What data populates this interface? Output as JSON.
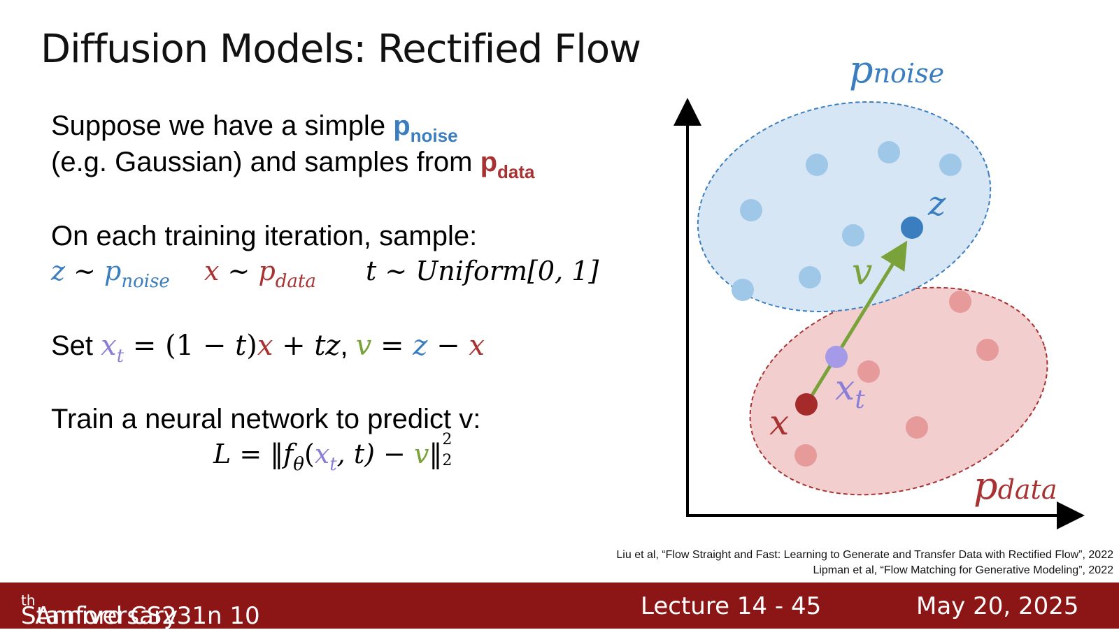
{
  "slide": {
    "title": "Diffusion Models: Rectified Flow",
    "intro_line1": "Suppose we have a simple ",
    "pnoise_p": "p",
    "pnoise_sub": "noise",
    "intro_line2": "(e.g. Gaussian) and samples from ",
    "pdata_p": "p",
    "pdata_sub": "data",
    "sample_heading": "On each training iteration, sample:",
    "sample_z": "z",
    "sample_tilde1": " ~ ",
    "sample_pnoise": "p",
    "sample_pnoise_sub": "noise",
    "sample_x": "x",
    "sample_tilde2": " ~ ",
    "sample_pdata": "p",
    "sample_pdata_sub": "data",
    "sample_t": "t ~ Uniform[0, 1]",
    "set_word": "Set ",
    "set_xt": "x",
    "set_xt_sub": "t",
    "set_eq1": " = (1 − ",
    "set_t": "t",
    "set_close": ")",
    "set_x": "x",
    "set_plus": " + ",
    "set_tz": "tz",
    "set_comma": ", ",
    "set_v": "v",
    "set_eq2": " = ",
    "set_z": "z",
    "set_minus": " − ",
    "set_x2": "x",
    "train_heading": "Train a neural network to predict v:",
    "loss_L": "L = ‖f",
    "loss_theta": "θ",
    "loss_open": "(",
    "loss_xt": "x",
    "loss_xt_sub": "t",
    "loss_rest": ", t) − ",
    "loss_v": "v",
    "loss_norm": "‖",
    "loss_sup": "2",
    "loss_sub": "2"
  },
  "diagram": {
    "label_pnoise": "p",
    "label_pnoise_sub": "noise",
    "label_pdata": "p",
    "label_pdata_sub": "data",
    "label_z": "z",
    "label_v": "v",
    "label_xt": "x",
    "label_xt_sub": "t",
    "label_x": "x",
    "colors": {
      "noise_fill": "#d6e6f4",
      "noise_border": "#3a7ebf",
      "noise_dot": "#9fc7e8",
      "z_dot": "#3a7ebf",
      "data_fill": "#f2cece",
      "data_border": "#a83232",
      "data_dot": "#e69a9a",
      "x_dot": "#a52a2a",
      "xt_dot": "#a49ae8",
      "arrow": "#7aa23a"
    }
  },
  "citations": {
    "line1": "Liu et al, “Flow Straight and Fast: Learning to Generate and Transfer Data with Rectified Flow”, 2022",
    "line2": "Lipman et al, “Flow Matching for Generative Modeling”, 2022"
  },
  "footer": {
    "course": "Stanford CS231n 10",
    "course_sup": "th",
    "course_tail": " Anniversary",
    "lecture": "Lecture 14 -  45",
    "date": "May 20, 2025",
    "bg_color": "#8c1515"
  }
}
